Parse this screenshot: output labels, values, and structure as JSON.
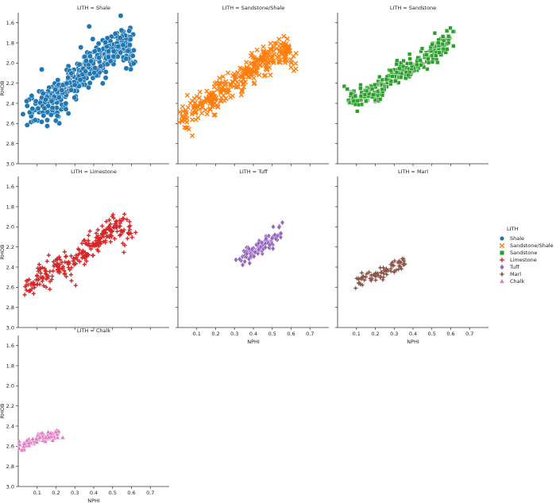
{
  "chart_data": {
    "type": "scatter",
    "facet_variable": "LITH",
    "xlabel": "NPHI",
    "ylabel": "RHOB",
    "xlim": [
      0,
      0.8
    ],
    "ylim": [
      1.5,
      3.0
    ],
    "y_inverted": true,
    "xticks": [
      "0.1",
      "0.2",
      "0.3",
      "0.4",
      "0.5",
      "0.6",
      "0.7"
    ],
    "yticks": [
      "1.6",
      "1.8",
      "2.0",
      "2.2",
      "2.4",
      "2.6",
      "2.8",
      "3.0"
    ],
    "legend": {
      "title": "LITH",
      "placement": "right"
    },
    "panels": [
      {
        "title": "LITH = Shale",
        "lith": "Shale",
        "color": "#1f77b4",
        "marker": "circle",
        "trend": [
          [
            0.05,
            2.43
          ],
          [
            0.1,
            2.48
          ],
          [
            0.15,
            2.42
          ],
          [
            0.2,
            2.34
          ],
          [
            0.25,
            2.26
          ],
          [
            0.3,
            2.17
          ],
          [
            0.35,
            2.08
          ],
          [
            0.4,
            2.0
          ],
          [
            0.45,
            1.93
          ],
          [
            0.5,
            1.86
          ],
          [
            0.55,
            1.8
          ],
          [
            0.6,
            1.9
          ]
        ],
        "spread": 0.12,
        "n": 420
      },
      {
        "title": "LITH = Sandstone/Shale",
        "lith": "Sandstone/Shale",
        "color": "#ff7f0e",
        "marker": "x",
        "trend": [
          [
            0.02,
            2.57
          ],
          [
            0.08,
            2.5
          ],
          [
            0.12,
            2.42
          ],
          [
            0.2,
            2.35
          ],
          [
            0.28,
            2.22
          ],
          [
            0.35,
            2.12
          ],
          [
            0.42,
            2.02
          ],
          [
            0.5,
            1.93
          ],
          [
            0.58,
            1.85
          ],
          [
            0.62,
            1.98
          ]
        ],
        "spread": 0.09,
        "n": 320
      },
      {
        "title": "LITH = Sandstone",
        "lith": "Sandstone",
        "color": "#2ca02c",
        "marker": "square",
        "trend": [
          [
            0.05,
            2.32
          ],
          [
            0.1,
            2.35
          ],
          [
            0.15,
            2.33
          ],
          [
            0.2,
            2.3
          ],
          [
            0.25,
            2.2
          ],
          [
            0.3,
            2.12
          ],
          [
            0.35,
            2.08
          ],
          [
            0.4,
            2.05
          ],
          [
            0.45,
            1.98
          ],
          [
            0.5,
            1.92
          ],
          [
            0.55,
            1.8
          ],
          [
            0.6,
            1.75
          ]
        ],
        "spread": 0.07,
        "n": 300
      },
      {
        "title": "LITH = Limestone",
        "lith": "Limestone",
        "color": "#d62728",
        "marker": "plus",
        "trend": [
          [
            0.02,
            2.58
          ],
          [
            0.06,
            2.56
          ],
          [
            0.1,
            2.52
          ],
          [
            0.15,
            2.48
          ],
          [
            0.2,
            2.42
          ],
          [
            0.28,
            2.38
          ],
          [
            0.33,
            2.28
          ],
          [
            0.4,
            2.18
          ],
          [
            0.45,
            2.08
          ],
          [
            0.5,
            2.02
          ],
          [
            0.55,
            2.0
          ],
          [
            0.6,
            2.05
          ]
        ],
        "spread": 0.08,
        "n": 260
      },
      {
        "title": "LITH = Tuff",
        "lith": "Tuff",
        "color": "#9467bd",
        "marker": "diamond",
        "trend": [
          [
            0.33,
            2.3
          ],
          [
            0.37,
            2.27
          ],
          [
            0.41,
            2.23
          ],
          [
            0.45,
            2.18
          ],
          [
            0.49,
            2.14
          ],
          [
            0.52,
            2.1
          ],
          [
            0.55,
            2.05
          ]
        ],
        "spread": 0.05,
        "n": 90
      },
      {
        "title": "LITH = Marl",
        "lith": "Marl",
        "color": "#8c564b",
        "marker": "star",
        "trend": [
          [
            0.08,
            2.57
          ],
          [
            0.12,
            2.53
          ],
          [
            0.16,
            2.5
          ],
          [
            0.2,
            2.47
          ],
          [
            0.24,
            2.45
          ],
          [
            0.3,
            2.4
          ],
          [
            0.36,
            2.35
          ]
        ],
        "spread": 0.04,
        "n": 70
      },
      {
        "title": "LITH = Chalk",
        "lith": "Chalk",
        "color": "#e377c2",
        "marker": "triangle",
        "trend": [
          [
            0.02,
            2.6
          ],
          [
            0.06,
            2.57
          ],
          [
            0.1,
            2.53
          ],
          [
            0.14,
            2.5
          ],
          [
            0.18,
            2.5
          ],
          [
            0.21,
            2.48
          ]
        ],
        "spread": 0.03,
        "n": 110
      }
    ],
    "legend_entries": [
      {
        "label": "Shale",
        "color": "#1f77b4",
        "marker": "circle"
      },
      {
        "label": "Sandstone/Shale",
        "color": "#ff7f0e",
        "marker": "x"
      },
      {
        "label": "Sandstone",
        "color": "#2ca02c",
        "marker": "square"
      },
      {
        "label": "Limestone",
        "color": "#d62728",
        "marker": "plus"
      },
      {
        "label": "Tuff",
        "color": "#9467bd",
        "marker": "diamond"
      },
      {
        "label": "Marl",
        "color": "#8c564b",
        "marker": "star"
      },
      {
        "label": "Chalk",
        "color": "#e377c2",
        "marker": "triangle"
      }
    ]
  }
}
